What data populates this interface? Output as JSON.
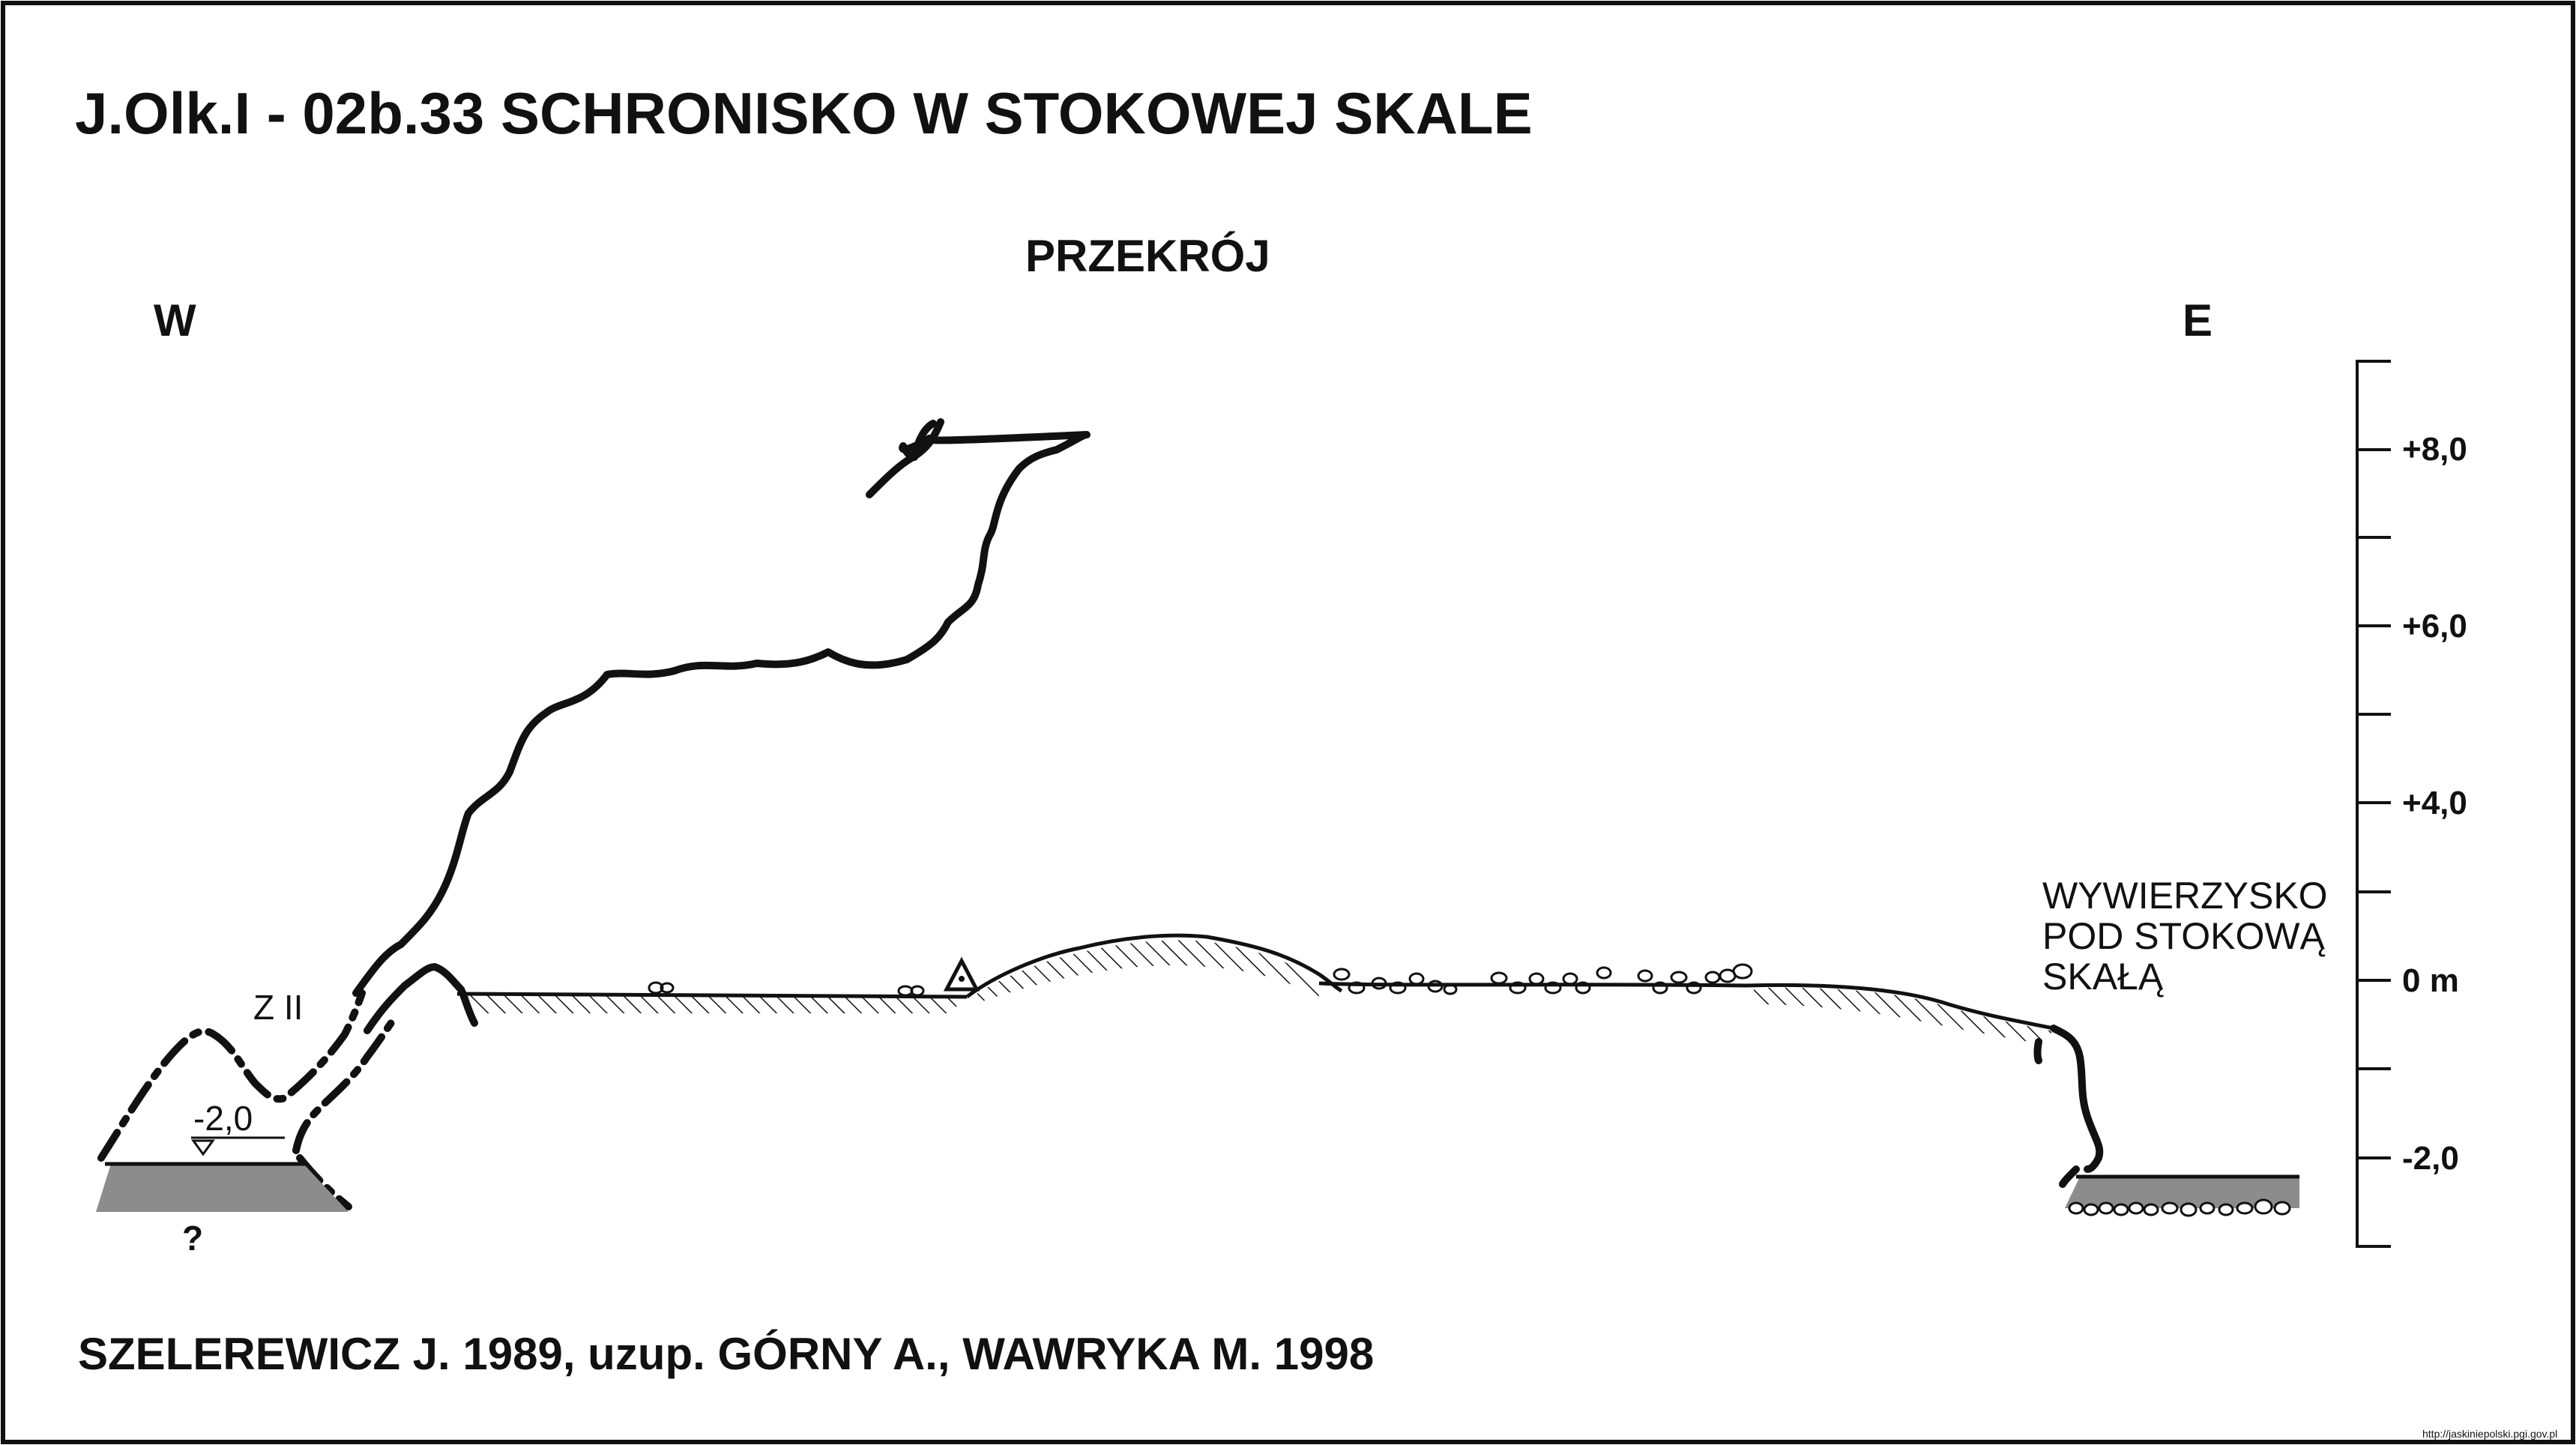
{
  "title": "J.Olk.I - 02b.33  SCHRONISKO W STOKOWEJ SKALE",
  "section_label": "PRZEKRÓJ",
  "compass": {
    "west": "W",
    "east": "E"
  },
  "labels": {
    "chamber": "Z II",
    "water_level": "-2,0",
    "unknown": "?",
    "spring": [
      "WYWIERZYSKO",
      "POD STOKOWĄ",
      "SKAŁĄ"
    ]
  },
  "scale": {
    "ticks": [
      "+8,0",
      "+6,0",
      "+4,0",
      "0 m",
      "-2,0"
    ]
  },
  "credits": "SZELEREWICZ J. 1989, uzup. GÓRNY A., WAWRYKA M. 1998",
  "source_url": "http://jaskiniepolski.pgi.gov.pl",
  "colors": {
    "line": "#111111",
    "water": "#8c8c8c",
    "frame": "#111111"
  }
}
